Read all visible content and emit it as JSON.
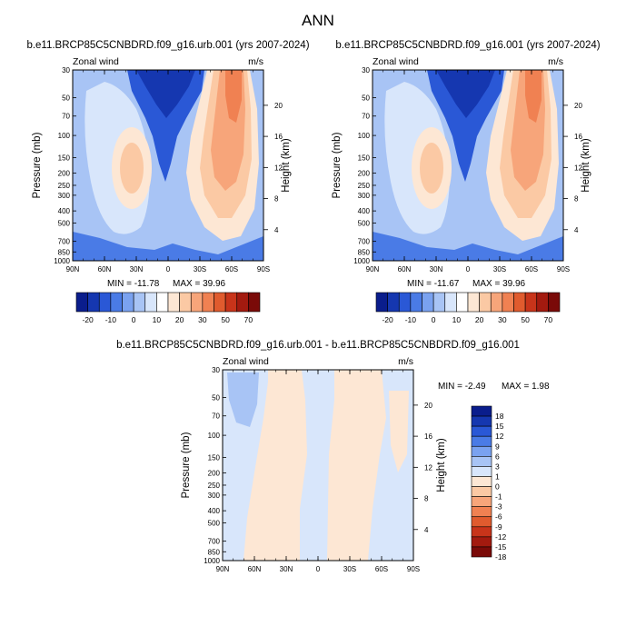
{
  "page_title": "ANN",
  "colors": {
    "panel_levels": [
      "#0a1d8c",
      "#1537b0",
      "#2a58d6",
      "#4a7be6",
      "#7aa2f0",
      "#a8c4f5",
      "#d8e6fb",
      "#ffffff",
      "#fde7d4",
      "#fbc9a4",
      "#f7a57a",
      "#f08152",
      "#e05b2e",
      "#c8341a",
      "#a31a0f",
      "#7a0a08"
    ],
    "diff_levels": [
      "#0a1d8c",
      "#1537b0",
      "#2a58d6",
      "#4a7be6",
      "#7aa2f0",
      "#a8c4f5",
      "#d8e6fb",
      "#fde7d4",
      "#fbc9a4",
      "#f7a57a",
      "#f08152",
      "#e05b2e",
      "#c8341a",
      "#a31a0f",
      "#7a0a08"
    ]
  },
  "chart_data": [
    {
      "type": "heatmap",
      "title": "b.e11.BRCP85C5CNBDRD.f09_g16.urb.001 (yrs 2007-2024)",
      "subtitle_left": "Zonal wind",
      "subtitle_right": "m/s",
      "xlabel": "",
      "ylabel": "Pressure (mb)",
      "ylabel_right": "Height (km)",
      "x_ticks": [
        "90N",
        "60N",
        "30N",
        "0",
        "30S",
        "60S",
        "90S"
      ],
      "y_ticks": [
        "30",
        "50",
        "70",
        "100",
        "150",
        "200",
        "250",
        "300",
        "400",
        "500",
        "700",
        "850",
        "1000"
      ],
      "y_ticks_right": [
        "20",
        "16",
        "12",
        "8",
        "4"
      ],
      "min_label": "MIN = -11.78",
      "max_label": "MAX =  39.96",
      "colorbar_labels": [
        "-20",
        "-10",
        "0",
        "10",
        "20",
        "30",
        "50",
        "70"
      ]
    },
    {
      "type": "heatmap",
      "title": "b.e11.BRCP85C5CNBDRD.f09_g16.001 (yrs 2007-2024)",
      "subtitle_left": "Zonal wind",
      "subtitle_right": "m/s",
      "xlabel": "",
      "ylabel": "Pressure (mb)",
      "ylabel_right": "Height (km)",
      "x_ticks": [
        "90N",
        "60N",
        "30N",
        "0",
        "30S",
        "60S",
        "90S"
      ],
      "y_ticks": [
        "30",
        "50",
        "70",
        "100",
        "150",
        "200",
        "250",
        "300",
        "400",
        "500",
        "700",
        "850",
        "1000"
      ],
      "y_ticks_right": [
        "20",
        "16",
        "12",
        "8",
        "4"
      ],
      "min_label": "MIN = -11.67",
      "max_label": "MAX =  39.96",
      "colorbar_labels": [
        "-20",
        "-10",
        "0",
        "10",
        "20",
        "30",
        "50",
        "70"
      ]
    },
    {
      "type": "heatmap",
      "title": "b.e11.BRCP85C5CNBDRD.f09_g16.urb.001 - b.e11.BRCP85C5CNBDRD.f09_g16.001",
      "subtitle_left": "Zonal wind",
      "subtitle_right": "m/s",
      "xlabel": "",
      "ylabel": "Pressure (mb)",
      "ylabel_right": "Height (km)",
      "x_ticks": [
        "90N",
        "60N",
        "30N",
        "0",
        "30S",
        "60S",
        "90S"
      ],
      "y_ticks": [
        "30",
        "50",
        "70",
        "100",
        "150",
        "200",
        "250",
        "300",
        "400",
        "500",
        "700",
        "850",
        "1000"
      ],
      "y_ticks_right": [
        "20",
        "16",
        "12",
        "8",
        "4"
      ],
      "min_label": "MIN =  -2.49",
      "max_label": "MAX =   1.98",
      "colorbar_labels": [
        "18",
        "15",
        "12",
        "9",
        "6",
        "3",
        "1",
        "0",
        "-1",
        "-3",
        "-6",
        "-9",
        "-12",
        "-15",
        "-18"
      ]
    }
  ]
}
